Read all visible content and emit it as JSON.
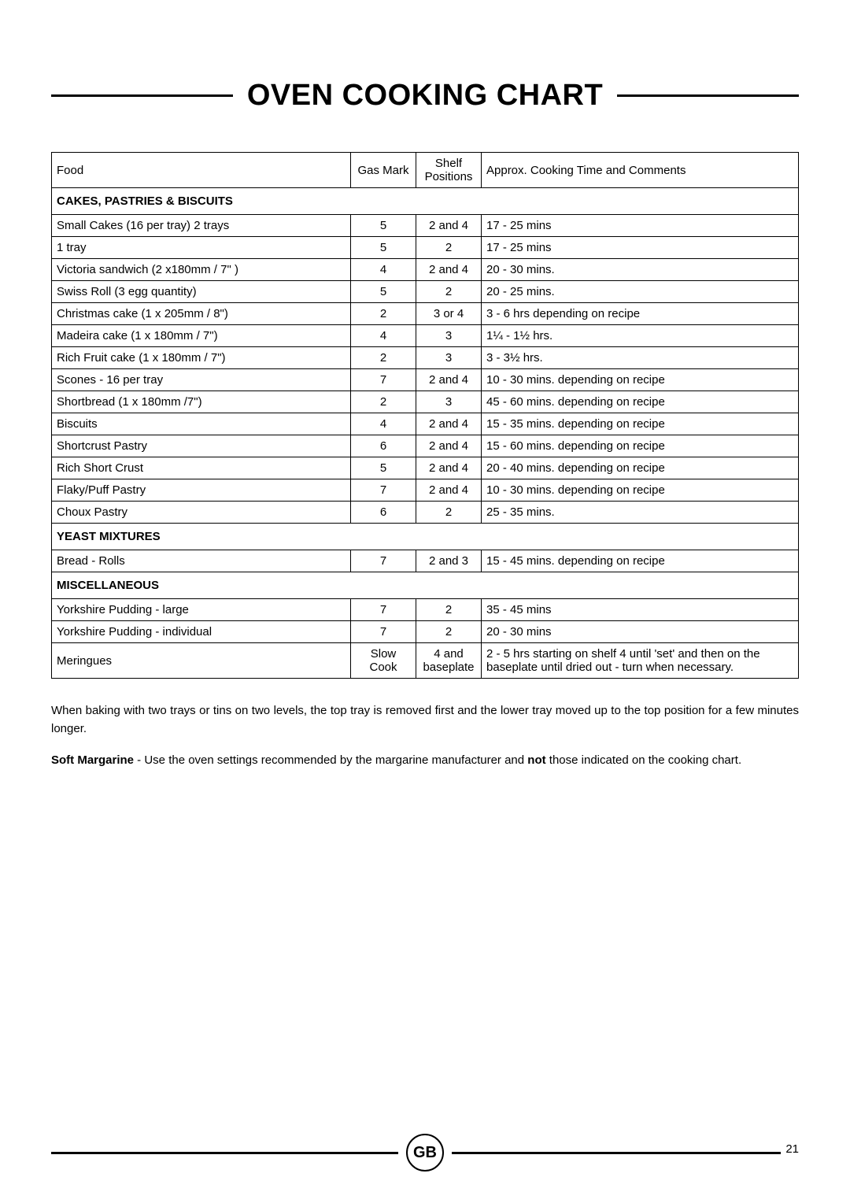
{
  "title": "OVEN COOKING CHART",
  "columns": {
    "food": "Food",
    "gas": "Gas Mark",
    "shelf": "Shelf Positions",
    "comments": "Approx. Cooking Time and Comments"
  },
  "sections": [
    {
      "heading": "CAKES, PASTRIES & BISCUITS",
      "rows": [
        {
          "food": "Small Cakes (16 per tray)  2 trays",
          "gas": "5",
          "shelf": "2 and 4",
          "comments": "17 - 25 mins",
          "tall": false
        },
        {
          "food": "1 tray",
          "gas": "5",
          "shelf": "2",
          "comments": "17 - 25 mins",
          "indent": true,
          "tall": true
        },
        {
          "food": "Victoria sandwich (2 x180mm  / 7\" )",
          "gas": "4",
          "shelf": "2 and 4",
          "comments": "20 - 30 mins."
        },
        {
          "food": "Swiss Roll (3 egg quantity)",
          "gas": "5",
          "shelf": "2",
          "comments": "20 - 25 mins."
        },
        {
          "food": "Christmas cake (1 x 205mm / 8\")",
          "gas": "2",
          "shelf": "3 or 4",
          "comments": "3 - 6 hrs depending on recipe"
        },
        {
          "food": "Madeira cake (1 x 180mm / 7\")",
          "gas": "4",
          "shelf": "3",
          "comments": "1¼ - 1½ hrs."
        },
        {
          "food": "Rich Fruit cake (1 x 180mm / 7\")",
          "gas": "2",
          "shelf": "3",
          "comments": "3 - 3½ hrs."
        },
        {
          "food": "Scones - 16 per tray",
          "gas": "7",
          "shelf": "2 and 4",
          "comments": "10 - 30 mins. depending on recipe"
        },
        {
          "food": "Shortbread (1 x 180mm /7\")",
          "gas": "2",
          "shelf": "3",
          "comments": "45 - 60 mins. depending on recipe",
          "tall": true
        },
        {
          "food": "Biscuits",
          "gas": "4",
          "shelf": "2 and 4",
          "comments": "15 - 35 mins. depending on recipe",
          "tall": true
        },
        {
          "food": "Shortcrust Pastry",
          "gas": "6",
          "shelf": "2 and 4",
          "comments": "15 - 60 mins. depending on recipe",
          "tall": true
        },
        {
          "food": "Rich Short Crust",
          "gas": "5",
          "shelf": "2 and 4",
          "comments": "20 - 40 mins. depending on recipe",
          "tall": true
        },
        {
          "food": "Flaky/Puff Pastry",
          "gas": "7",
          "shelf": "2 and 4",
          "comments": "10 - 30 mins. depending on recipe"
        },
        {
          "food": "Choux Pastry",
          "gas": "6",
          "shelf": "2",
          "comments": "25 - 35 mins."
        }
      ]
    },
    {
      "heading": "YEAST MIXTURES",
      "rows": [
        {
          "food": "Bread - Rolls",
          "gas": "7",
          "shelf": "2 and 3",
          "comments": "15 - 45 mins. depending on recipe"
        }
      ]
    },
    {
      "heading": "MISCELLANEOUS",
      "rows": [
        {
          "food": "Yorkshire Pudding - large",
          "gas": "7",
          "shelf": "2",
          "comments": "35 - 45 mins"
        },
        {
          "food": "Yorkshire Pudding - individual",
          "gas": "7",
          "shelf": "2",
          "comments": "20 - 30 mins"
        },
        {
          "food": "Meringues",
          "gas": "Slow Cook",
          "shelf": "4 and baseplate",
          "comments": "2 - 5 hrs starting on shelf 4 until 'set' and then on the baseplate until dried out - turn when necessary."
        }
      ]
    }
  ],
  "notes": {
    "para1": "When baking with two trays or tins on two levels, the top tray is removed first and the lower tray moved up to the top position for a few minutes longer.",
    "para2_bold": "Soft Margarine",
    "para2_rest": " - Use the oven settings recommended by the margarine manufacturer and ",
    "para2_bold2": "not",
    "para2_rest2": " those indicated on the cooking chart."
  },
  "footer": {
    "badge": "GB",
    "page": "21"
  }
}
